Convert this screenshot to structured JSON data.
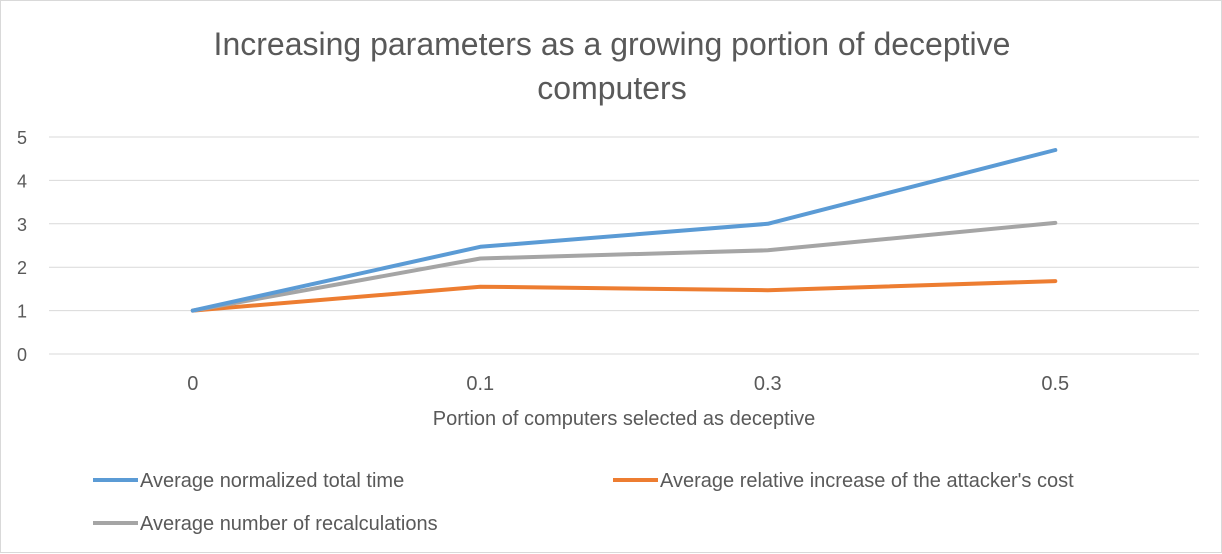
{
  "chart_data": {
    "type": "line",
    "title": "Increasing parameters as a growing portion of deceptive computers",
    "xlabel": "Portion of computers selected as deceptive",
    "ylabel": "",
    "categories": [
      "0",
      "0.1",
      "0.3",
      "0.5"
    ],
    "ylim": [
      0,
      5
    ],
    "yticks": [
      "0",
      "1",
      "2",
      "3",
      "4",
      "5"
    ],
    "grid": true,
    "legend_position": "bottom",
    "series": [
      {
        "name": "Average normalized total time",
        "color": "#5B9BD5",
        "values": [
          1,
          2.47,
          3.0,
          4.7
        ]
      },
      {
        "name": "Average relative increase of the attacker's cost",
        "color": "#ED7D31",
        "values": [
          1,
          1.55,
          1.47,
          1.68
        ]
      },
      {
        "name": "Average number of recalculations",
        "color": "#A5A5A5",
        "values": [
          1,
          2.2,
          2.39,
          3.02
        ]
      }
    ]
  }
}
